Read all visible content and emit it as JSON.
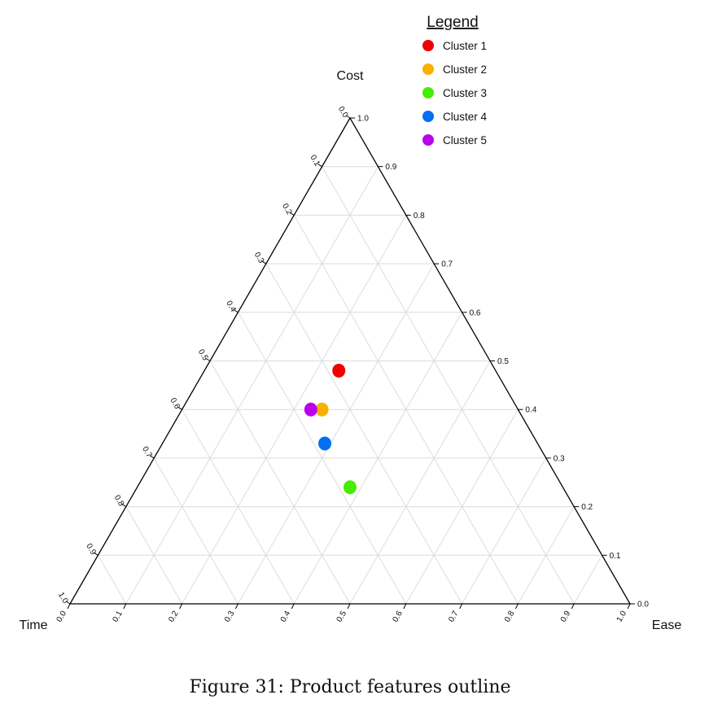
{
  "chart_data": {
    "type": "scatter",
    "subtype": "ternary",
    "axes": {
      "top": "Cost",
      "left": "Time",
      "right": "Ease"
    },
    "ticks": [
      "0.0",
      "0.1",
      "0.2",
      "0.3",
      "0.4",
      "0.5",
      "0.6",
      "0.7",
      "0.8",
      "0.9",
      "1.0"
    ],
    "grid": true,
    "legend": {
      "title": "Legend",
      "placement": "top-right"
    },
    "series": [
      {
        "name": "Cluster 1",
        "color": "#ee0000",
        "cost": 0.48,
        "ease": 0.24,
        "time": 0.28
      },
      {
        "name": "Cluster 2",
        "color": "#f9b000",
        "cost": 0.4,
        "ease": 0.25,
        "time": 0.35
      },
      {
        "name": "Cluster 3",
        "color": "#44ee00",
        "cost": 0.24,
        "ease": 0.38,
        "time": 0.38
      },
      {
        "name": "Cluster 4",
        "color": "#0070f0",
        "cost": 0.33,
        "ease": 0.29,
        "time": 0.38
      },
      {
        "name": "Cluster 5",
        "color": "#bb00ee",
        "cost": 0.4,
        "ease": 0.23,
        "time": 0.37
      }
    ]
  },
  "caption": "Figure 31: Product features outline"
}
